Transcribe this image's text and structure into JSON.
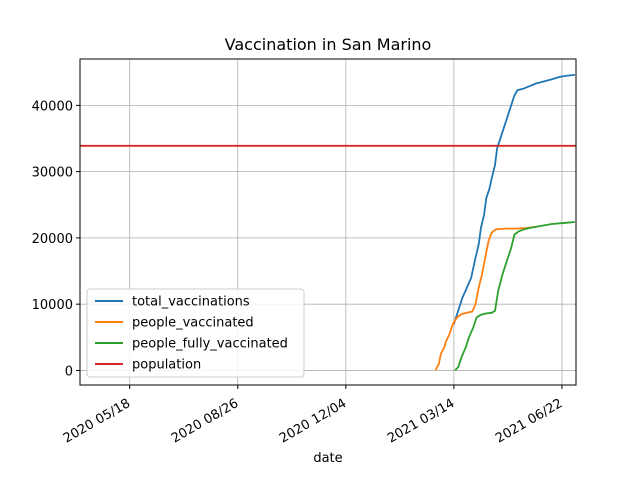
{
  "chart_data": {
    "type": "line",
    "title": "Vaccination in San Marino",
    "xlabel": "date",
    "ylabel": "",
    "grid": true,
    "legend_position": "lower-left",
    "xlim": [
      "2020-04-02",
      "2021-07-05"
    ],
    "ylim": [
      -2200,
      47000
    ],
    "x_ticks": [
      "2020-05-18",
      "2020-08-26",
      "2020-12-04",
      "2021-03-14",
      "2021-06-22"
    ],
    "x_tick_labels": [
      "2020 05/18",
      "2020 08/26",
      "2020 12/04",
      "2021 03/14",
      "2021 06/22"
    ],
    "y_ticks": [
      0,
      10000,
      20000,
      30000,
      40000
    ],
    "y_tick_labels": [
      "0",
      "10000",
      "20000",
      "30000",
      "40000"
    ],
    "series": [
      {
        "name": "total_vaccinations",
        "color": "#1f77b4",
        "points": [
          [
            "2021-03-14",
            7000
          ],
          [
            "2021-03-18",
            9000
          ],
          [
            "2021-03-22",
            11000
          ],
          [
            "2021-03-26",
            12500
          ],
          [
            "2021-03-30",
            14000
          ],
          [
            "2021-04-03",
            17000
          ],
          [
            "2021-04-06",
            19000
          ],
          [
            "2021-04-08",
            21500
          ],
          [
            "2021-04-11",
            23500
          ],
          [
            "2021-04-13",
            26000
          ],
          [
            "2021-04-16",
            27500
          ],
          [
            "2021-04-18",
            29000
          ],
          [
            "2021-04-21",
            31000
          ],
          [
            "2021-04-23",
            33500
          ],
          [
            "2021-04-27",
            35500
          ],
          [
            "2021-05-01",
            37500
          ],
          [
            "2021-05-05",
            39500
          ],
          [
            "2021-05-09",
            41500
          ],
          [
            "2021-05-12",
            42300
          ],
          [
            "2021-05-17",
            42500
          ],
          [
            "2021-05-23",
            42900
          ],
          [
            "2021-05-29",
            43300
          ],
          [
            "2021-06-05",
            43600
          ],
          [
            "2021-06-12",
            43900
          ],
          [
            "2021-06-20",
            44300
          ],
          [
            "2021-06-27",
            44500
          ],
          [
            "2021-07-04",
            44600
          ]
        ]
      },
      {
        "name": "people_vaccinated",
        "color": "#ff7f0e",
        "points": [
          [
            "2021-02-25",
            0
          ],
          [
            "2021-02-28",
            1000
          ],
          [
            "2021-03-02",
            2500
          ],
          [
            "2021-03-05",
            3500
          ],
          [
            "2021-03-07",
            4500
          ],
          [
            "2021-03-10",
            5500
          ],
          [
            "2021-03-13",
            7000
          ],
          [
            "2021-03-17",
            8000
          ],
          [
            "2021-03-21",
            8500
          ],
          [
            "2021-03-26",
            8700
          ],
          [
            "2021-03-31",
            8900
          ],
          [
            "2021-04-03",
            10000
          ],
          [
            "2021-04-06",
            12500
          ],
          [
            "2021-04-09",
            14500
          ],
          [
            "2021-04-12",
            17000
          ],
          [
            "2021-04-15",
            19500
          ],
          [
            "2021-04-18",
            20800
          ],
          [
            "2021-04-22",
            21300
          ],
          [
            "2021-05-01",
            21400
          ],
          [
            "2021-05-10",
            21400
          ],
          [
            "2021-05-20",
            21500
          ],
          [
            "2021-05-30",
            21700
          ]
        ]
      },
      {
        "name": "people_fully_vaccinated",
        "color": "#2ca02c",
        "points": [
          [
            "2021-03-15",
            0
          ],
          [
            "2021-03-18",
            500
          ],
          [
            "2021-03-21",
            2000
          ],
          [
            "2021-03-25",
            3500
          ],
          [
            "2021-03-28",
            5000
          ],
          [
            "2021-04-01",
            6500
          ],
          [
            "2021-04-04",
            8000
          ],
          [
            "2021-04-08",
            8400
          ],
          [
            "2021-04-13",
            8600
          ],
          [
            "2021-04-18",
            8700
          ],
          [
            "2021-04-21",
            9000
          ],
          [
            "2021-04-24",
            12000
          ],
          [
            "2021-04-28",
            14500
          ],
          [
            "2021-05-02",
            16500
          ],
          [
            "2021-05-06",
            18500
          ],
          [
            "2021-05-09",
            20500
          ],
          [
            "2021-05-13",
            21000
          ],
          [
            "2021-05-18",
            21300
          ],
          [
            "2021-05-23",
            21500
          ],
          [
            "2021-05-30",
            21700
          ],
          [
            "2021-06-06",
            21900
          ],
          [
            "2021-06-13",
            22100
          ],
          [
            "2021-06-20",
            22200
          ],
          [
            "2021-06-27",
            22300
          ],
          [
            "2021-07-04",
            22400
          ]
        ]
      },
      {
        "name": "population",
        "color": "#d62728",
        "points": [
          [
            "2020-04-02",
            33900
          ],
          [
            "2021-07-05",
            33900
          ]
        ]
      }
    ]
  }
}
